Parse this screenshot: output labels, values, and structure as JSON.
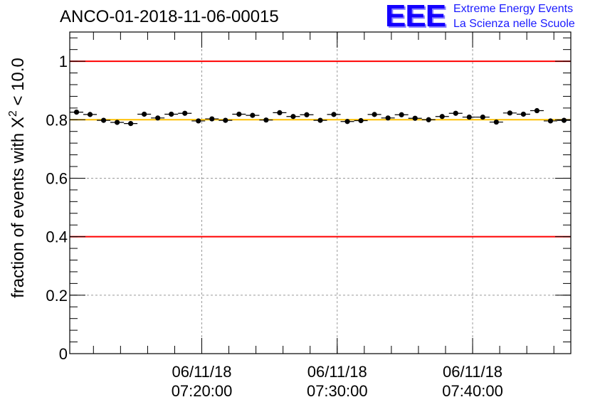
{
  "header": {
    "title": "ANCO-01-2018-11-06-00015"
  },
  "logo": {
    "mark": "EEE",
    "line1": "Extreme Energy Events",
    "line2": "La Scienza nelle Scuole",
    "color": "#1400ff"
  },
  "chart_data": {
    "type": "scatter",
    "title": "ANCO-01-2018-11-06-00015",
    "ylabel": "fraction of events with X² < 10.0",
    "ylabel_prefix": "fraction of events with X",
    "ylabel_sup": "2",
    "ylabel_suffix": " < 10.0",
    "xlabel": "",
    "ylim": [
      0,
      1.1
    ],
    "xlim_minutes": [
      0,
      37
    ],
    "y_ticks": [
      "0",
      "0.2",
      "0.4",
      "0.6",
      "0.8",
      "1"
    ],
    "y_tick_values": [
      0,
      0.2,
      0.4,
      0.6,
      0.8,
      1
    ],
    "x_tick_minutes": [
      9.75,
      19.75,
      29.75
    ],
    "x_ticks": [
      {
        "date": "06/11/18",
        "time": "07:20:00"
      },
      {
        "date": "06/11/18",
        "time": "07:30:00"
      },
      {
        "date": "06/11/18",
        "time": "07:40:00"
      }
    ],
    "grid": true,
    "reference_lines": [
      {
        "y": 1.0,
        "color": "#ff0000"
      },
      {
        "y": 0.4,
        "color": "#ff0000"
      },
      {
        "y": 0.8,
        "color": "#ffc000"
      }
    ],
    "point_color": "#000000",
    "bin_width_minutes": 1,
    "x_centers_minutes": [
      0.5,
      1.5,
      2.5,
      3.5,
      4.5,
      5.5,
      6.5,
      7.5,
      8.5,
      9.5,
      10.5,
      11.5,
      12.5,
      13.5,
      14.5,
      15.5,
      16.5,
      17.5,
      18.5,
      19.5,
      20.5,
      21.5,
      22.5,
      23.5,
      24.5,
      25.5,
      26.5,
      27.5,
      28.5,
      29.5,
      30.5,
      31.5,
      32.5,
      33.5,
      34.5,
      35.5,
      36.5
    ],
    "values": [
      0.826,
      0.818,
      0.798,
      0.791,
      0.787,
      0.819,
      0.806,
      0.819,
      0.822,
      0.796,
      0.803,
      0.798,
      0.819,
      0.815,
      0.799,
      0.824,
      0.811,
      0.817,
      0.798,
      0.818,
      0.794,
      0.797,
      0.818,
      0.806,
      0.817,
      0.805,
      0.8,
      0.811,
      0.822,
      0.809,
      0.809,
      0.792,
      0.823,
      0.819,
      0.831,
      0.796,
      0.798
    ],
    "errors": [
      0.006,
      0.006,
      0.006,
      0.006,
      0.006,
      0.006,
      0.006,
      0.006,
      0.006,
      0.006,
      0.006,
      0.006,
      0.006,
      0.006,
      0.006,
      0.006,
      0.006,
      0.006,
      0.006,
      0.006,
      0.006,
      0.006,
      0.006,
      0.006,
      0.006,
      0.006,
      0.006,
      0.006,
      0.006,
      0.006,
      0.006,
      0.006,
      0.006,
      0.006,
      0.006,
      0.006,
      0.006
    ]
  }
}
